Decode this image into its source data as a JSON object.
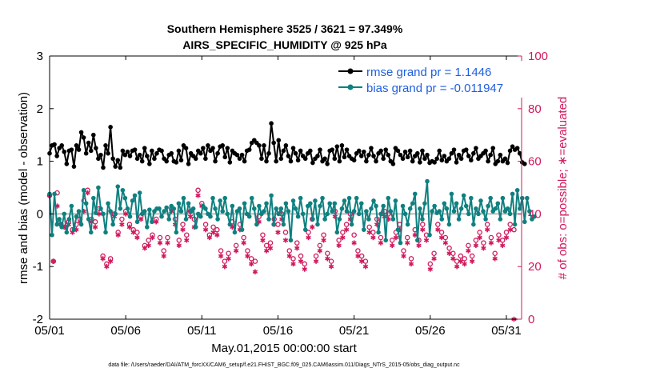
{
  "chart_data": {
    "type": "line",
    "title": "Southern Hemisphere 3525 / 3621 = 97.349%",
    "subtitle": "AIRS_SPECIFIC_HUMIDITY @ 925 hPa",
    "xlabel": "May.01,2015 00:00:00 start",
    "ylabel": "rmse and bias (model - observation)",
    "y2label": "# of obs: o=possible; ∗=evaluated",
    "footer": "data file: /Users/raeder/DAI/ATM_forcXX/CAM6_setup/f.e21.FHIST_BGC.f09_025.CAM6assim.011/Diags_NTrS_2015-05/obs_diag_output.nc",
    "x_ticks": [
      "05/01",
      "05/06",
      "05/11",
      "05/16",
      "05/21",
      "05/26",
      "05/31"
    ],
    "x_tick_days": [
      1,
      6,
      11,
      16,
      21,
      26,
      31
    ],
    "xlim": [
      1,
      32
    ],
    "ylim": [
      -2,
      3
    ],
    "y_ticks": [
      "-2",
      "-1",
      "0",
      "1",
      "2",
      "3"
    ],
    "y2lim": [
      0,
      100
    ],
    "y2_ticks": [
      "0",
      "20",
      "40",
      "60",
      "80",
      "100"
    ],
    "legend": [
      "rmse grand pr = 1.1446",
      "bias grand pr = -0.011947"
    ],
    "colors": {
      "rmse": "#000000",
      "bias": "#0f8080",
      "obs": "#d1195c",
      "zero_line": "#bbbbbb",
      "legend_text": "#1f5fe0"
    },
    "series": [
      {
        "name": "rmse",
        "axis": "left",
        "values": [
          1.15,
          1.3,
          1.32,
          1.1,
          1.25,
          1.3,
          1.18,
          0.95,
          1.2,
          1.22,
          0.9,
          1.3,
          1.22,
          1.55,
          1.45,
          1.15,
          1.35,
          1.2,
          1.5,
          1.25,
          1.05,
          1.12,
          0.88,
          1.3,
          1.15,
          1.65,
          1.05,
          0.9,
          1.02,
          0.88,
          1.2,
          1.12,
          1.18,
          1.1,
          1.2,
          1.22,
          1.05,
          1.12,
          1.0,
          1.25,
          1.1,
          0.95,
          1.2,
          1.05,
          1.15,
          1.22,
          1.2,
          1.05,
          1.0,
          1.12,
          1.15,
          1.0,
          0.98,
          1.2,
          1.02,
          1.3,
          1.25,
          0.95,
          1.15,
          1.1,
          1.05,
          1.2,
          1.15,
          1.25,
          1.05,
          1.3,
          1.2,
          1.25,
          1.0,
          1.15,
          1.28,
          1.3,
          1.08,
          1.25,
          0.98,
          1.2,
          1.15,
          1.12,
          1.05,
          1.12,
          1.0,
          1.2,
          1.22,
          1.35,
          1.4,
          1.35,
          1.3,
          1.05,
          1.3,
          1.0,
          1.15,
          1.72,
          1.35,
          1.0,
          1.4,
          1.05,
          1.2,
          1.3,
          1.1,
          1.0,
          1.25,
          1.15,
          1.02,
          1.2,
          1.1,
          1.05,
          1.15,
          1.2,
          0.97,
          1.05,
          1.1,
          1.22,
          1.0,
          1.05,
          0.95,
          1.2,
          1.22,
          1.05,
          1.28,
          1.0,
          1.3,
          1.08,
          1.22,
          1.1,
          1.05,
          1.02,
          1.15,
          1.2,
          1.1,
          1.18,
          1.0,
          1.12,
          1.25,
          1.1,
          1.0,
          1.15,
          1.2,
          1.05,
          1.22,
          1.12,
          1.0,
          0.95,
          1.25,
          1.2,
          1.12,
          1.05,
          1.18,
          1.08,
          1.2,
          1.0,
          1.1,
          1.15,
          0.98,
          1.2,
          1.05,
          1.12,
          0.97,
          1.0,
          0.98,
          1.05,
          1.2,
          1.02,
          1.1,
          1.0,
          1.05,
          1.15,
          1.22,
          0.98,
          1.12,
          1.05,
          1.2,
          1.22,
          1.1,
          1.02,
          1.15,
          1.25,
          1.05,
          1.1,
          1.15,
          1.2,
          1.0,
          1.12,
          1.25,
          0.95,
          1.0,
          1.12,
          1.0,
          1.05,
          0.97,
          1.2,
          1.28,
          1.22,
          1.25,
          1.15,
          0.98,
          0.95
        ],
        "start_day": 1.0,
        "step_days": 0.16
      },
      {
        "name": "bias",
        "axis": "left",
        "values": [
          0.38,
          -0.4,
          0.38,
          -0.2,
          -0.1,
          -0.25,
          0.0,
          -0.35,
          -0.1,
          0.15,
          -0.3,
          -0.05,
          0.05,
          -0.2,
          0.45,
          0.2,
          -0.1,
          -0.35,
          0.3,
          0.02,
          0.5,
          0.1,
          0.0,
          -0.35,
          0.2,
          0.05,
          -0.2,
          0.0,
          0.52,
          0.1,
          0.45,
          0.3,
          0.1,
          -0.05,
          0.25,
          0.35,
          -0.15,
          0.4,
          0.0,
          0.05,
          -0.25,
          0.08,
          -0.15,
          0.05,
          0.1,
          0.1,
          -0.05,
          0.05,
          0.12,
          -0.1,
          0.15,
          0.1,
          -0.35,
          0.2,
          0.05,
          0.3,
          -0.1,
          0.2,
          0.05,
          0.1,
          -0.25,
          0.0,
          -0.05,
          0.15,
          0.1,
          0.0,
          -0.05,
          0.3,
          0.1,
          -0.1,
          0.25,
          0.05,
          0.3,
          0.0,
          -0.2,
          0.15,
          -0.35,
          0.05,
          0.1,
          -0.3,
          0.2,
          0.0,
          -0.05,
          0.3,
          0.1,
          -0.2,
          0.15,
          0.0,
          0.05,
          0.2,
          -0.1,
          0.35,
          -0.2,
          0.1,
          0.0,
          0.1,
          -0.2,
          0.2,
          0.05,
          -0.5,
          0.25,
          0.1,
          -0.05,
          0.3,
          0.0,
          -0.3,
          0.15,
          0.2,
          -0.1,
          0.25,
          -0.2,
          0.15,
          0.3,
          -0.1,
          0.0,
          0.2,
          0.05,
          0.2,
          -0.35,
          -0.1,
          0.1,
          0.25,
          0.05,
          0.3,
          -0.2,
          0.05,
          0.3,
          0.0,
          0.2,
          -0.3,
          0.05,
          -0.1,
          0.1,
          0.25,
          0.15,
          -0.35,
          0.0,
          0.15,
          -0.5,
          0.3,
          0.05,
          -0.1,
          0.25,
          -0.3,
          -0.55,
          0.15,
          0.0,
          -0.2,
          0.1,
          0.2,
          0.38,
          -0.5,
          0.1,
          -0.1,
          0.2,
          0.62,
          -0.4,
          0.05,
          0.15,
          0.02,
          0.05,
          -0.1,
          0.2,
          0.1,
          -0.2,
          0.38,
          0.05,
          0.2,
          -0.1,
          0.1,
          0.35,
          0.15,
          0.0,
          0.3,
          -0.2,
          0.1,
          0.0,
          0.25,
          0.05,
          -0.1,
          0.15,
          0.3,
          0.05,
          0.1,
          0.2,
          -0.1,
          0.3,
          0.05,
          0.1,
          0.0,
          0.38,
          -0.2,
          0.45,
          0.1,
          0.3,
          -0.15,
          0.3,
          0.05,
          -0.1,
          -0.05
        ],
        "start_day": 1.0,
        "step_days": 0.16
      },
      {
        "name": "obs_possible",
        "axis": "right",
        "marker": "o",
        "values": [
          47,
          22,
          48,
          36,
          35,
          37,
          34,
          36,
          38,
          45,
          49,
          38,
          37,
          42,
          24,
          21,
          23,
          40,
          33,
          38,
          41,
          36,
          34,
          33,
          39,
          28,
          30,
          32,
          38,
          31,
          26,
          31,
          42,
          38,
          30,
          36,
          32,
          41,
          38,
          49,
          44,
          36,
          32,
          35,
          34,
          26,
          22,
          25,
          37,
          28,
          36,
          31,
          26,
          23,
          22,
          39,
          32,
          28,
          29,
          38,
          36,
          40,
          33,
          26,
          23,
          29,
          24,
          21,
          33,
          38,
          24,
          28,
          32,
          25,
          22,
          41,
          30,
          33,
          36,
          40,
          32,
          26,
          24,
          22,
          35,
          33,
          38,
          31,
          41,
          40,
          30,
          33,
          36,
          26,
          31,
          23,
          34,
          30,
          36,
          32,
          21,
          25,
          36,
          33,
          31,
          27,
          25,
          22,
          24,
          23,
          28,
          24,
          30,
          33,
          29,
          36,
          31,
          25,
          32,
          30,
          33,
          36,
          34
        ],
        "start_day": 1.0,
        "step_days": 0.25
      },
      {
        "name": "obs_evaluated",
        "axis": "right",
        "marker": "*",
        "values": [
          47,
          22,
          43,
          36,
          35,
          36,
          33,
          34,
          37,
          41,
          48,
          37,
          35,
          40,
          23,
          20,
          22,
          39,
          32,
          36,
          40,
          35,
          33,
          31,
          38,
          27,
          28,
          31,
          37,
          29,
          24,
          29,
          41,
          36,
          28,
          34,
          30,
          39,
          35,
          47,
          43,
          34,
          31,
          33,
          32,
          24,
          20,
          23,
          35,
          26,
          34,
          29,
          24,
          21,
          18,
          37,
          30,
          26,
          27,
          36,
          33,
          38,
          30,
          24,
          21,
          27,
          22,
          19,
          31,
          35,
          22,
          26,
          30,
          23,
          20,
          39,
          28,
          31,
          34,
          38,
          29,
          24,
          22,
          20,
          33,
          31,
          36,
          29,
          39,
          38,
          28,
          31,
          34,
          24,
          29,
          21,
          32,
          28,
          34,
          30,
          19,
          23,
          34,
          31,
          29,
          25,
          23,
          20,
          22,
          21,
          26,
          22,
          28,
          31,
          27,
          34,
          29,
          23,
          30,
          28,
          31,
          34,
          0
        ],
        "start_day": 1.0,
        "step_days": 0.25
      }
    ]
  }
}
